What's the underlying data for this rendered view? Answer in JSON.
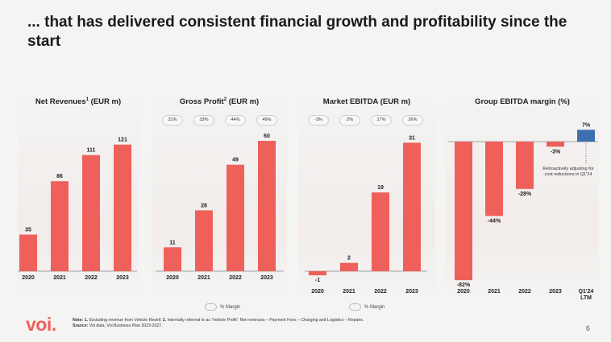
{
  "title": "... that has delivered consistent financial growth and profitability since the start",
  "colors": {
    "bar": "#f0605a",
    "highlight": "#3f6fb0",
    "axis": "#888888"
  },
  "legend_label": "% Margin",
  "footnote": {
    "line1_prefix": "Note: 1.",
    "line1": " Excluding revenue from Vehicle Resell; ",
    "line1_b": "2.",
    "line1_rest": " Internally referred to as 'Vehicle Profit': Net revenues – Payment Fees – Charging and Logistics – Repairs.",
    "line2_prefix": "Source:",
    "line2": " Voi data, Voi Business Plan 2023-2027."
  },
  "logo": "voi.",
  "page_number": "6",
  "annotation": "Retroactively adjusting for cost reductions in Q1'24",
  "chart_data": [
    {
      "type": "bar",
      "title": "Net Revenues",
      "title_sup": "1",
      "title_suffix": " (EUR m)",
      "categories": [
        "2020",
        "2021",
        "2022",
        "2023"
      ],
      "values": [
        35,
        86,
        111,
        121
      ],
      "labels": [
        "35",
        "86",
        "111",
        "121"
      ]
    },
    {
      "type": "bar",
      "title": "Gross Profit",
      "title_sup": "2",
      "title_suffix": " (EUR m)",
      "categories": [
        "2020",
        "2021",
        "2022",
        "2023"
      ],
      "values": [
        11,
        28,
        49,
        60
      ],
      "labels": [
        "11",
        "28",
        "49",
        "60"
      ],
      "margins": [
        "31%",
        "33%",
        "44%",
        "49%"
      ]
    },
    {
      "type": "bar",
      "title": "Market EBITDA (EUR m)",
      "categories": [
        "2020",
        "2021",
        "2022",
        "2023"
      ],
      "values": [
        -1,
        2,
        19,
        31
      ],
      "labels": [
        "-1",
        "2",
        "19",
        "31"
      ],
      "margins": [
        "-3%",
        "2%",
        "17%",
        "26%"
      ]
    },
    {
      "type": "bar",
      "title": "Group EBITDA margin (%)",
      "categories": [
        "2020",
        "2021",
        "2022",
        "2023",
        "Q1'24 LTM"
      ],
      "values": [
        -82,
        -44,
        -28,
        -3,
        7
      ],
      "labels": [
        "-82%",
        "-44%",
        "-28%",
        "-3%",
        "7%"
      ],
      "highlight_index": 4
    }
  ]
}
